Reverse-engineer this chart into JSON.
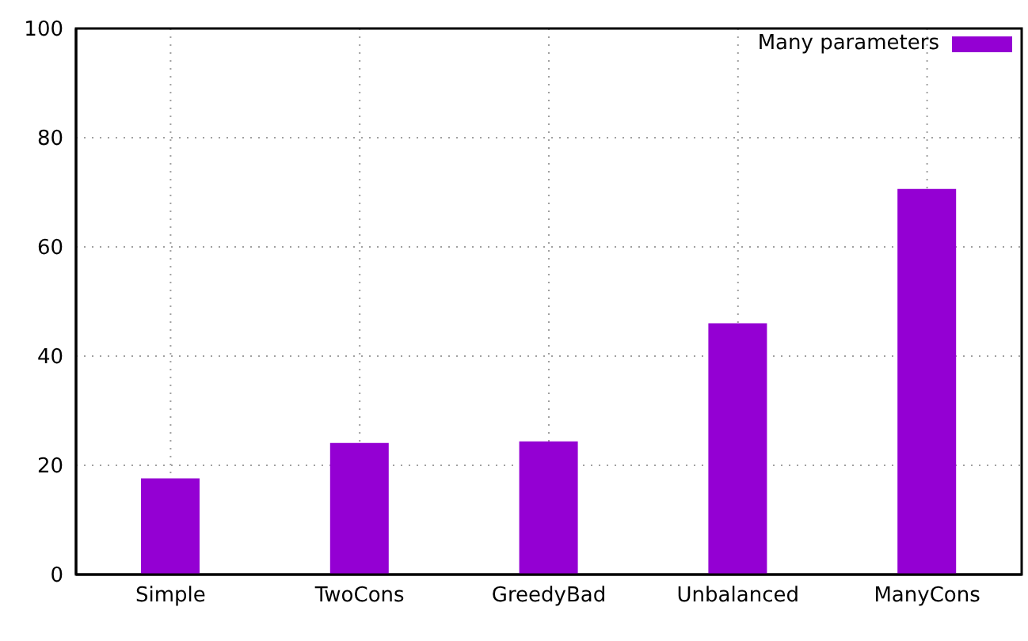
{
  "chart_data": {
    "type": "bar",
    "categories": [
      "Simple",
      "TwoCons",
      "GreedyBad",
      "Unbalanced",
      "ManyCons"
    ],
    "series": [
      {
        "name": "Many parameters",
        "color": "#9400d3",
        "values": [
          17.6,
          24.1,
          24.4,
          46.0,
          70.6
        ]
      }
    ],
    "ylim": [
      0,
      100
    ],
    "yticks": [
      0,
      20,
      40,
      60,
      80,
      100
    ],
    "grid": true,
    "legend": "top right"
  }
}
